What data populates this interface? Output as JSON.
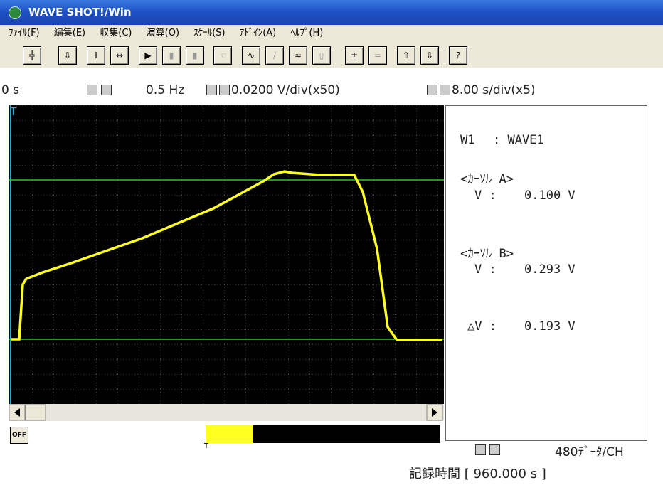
{
  "window": {
    "title": "WAVE SHOT!/Win"
  },
  "menu": [
    "ﾌｧｲﾙ(F)",
    "編集(E)",
    "収集(C)",
    "演算(O)",
    "ｽｹｰﾙ(S)",
    "ｱﾄﾞｲﾝ(A)",
    "ﾍﾙﾌﾟ(H)"
  ],
  "status": {
    "time": "0 s",
    "frequency": "0.5 Hz",
    "volts_per_div": "0.0200 V/div(x50)",
    "seconds_per_div": "8.00 s/div(x5)"
  },
  "graph": {
    "trigger_marker": "T"
  },
  "panel": {
    "channel": "W1",
    "wave": ": WAVE1",
    "cursor_a": {
      "label": "<ｶｰｿﾙ A>",
      "name": "V :",
      "value": "0.100 V"
    },
    "cursor_b": {
      "label": "<ｶｰｿﾙ B>",
      "name": "V :",
      "value": "0.293 V"
    },
    "delta": {
      "name": "△V :",
      "value": "0.193 V"
    }
  },
  "footer": {
    "off_button": "OFF",
    "bar_marker": "T",
    "data_count": "480ﾃﾞｰﾀ/CH",
    "record_time": "記録時間 [ 960.000 s ]"
  }
}
